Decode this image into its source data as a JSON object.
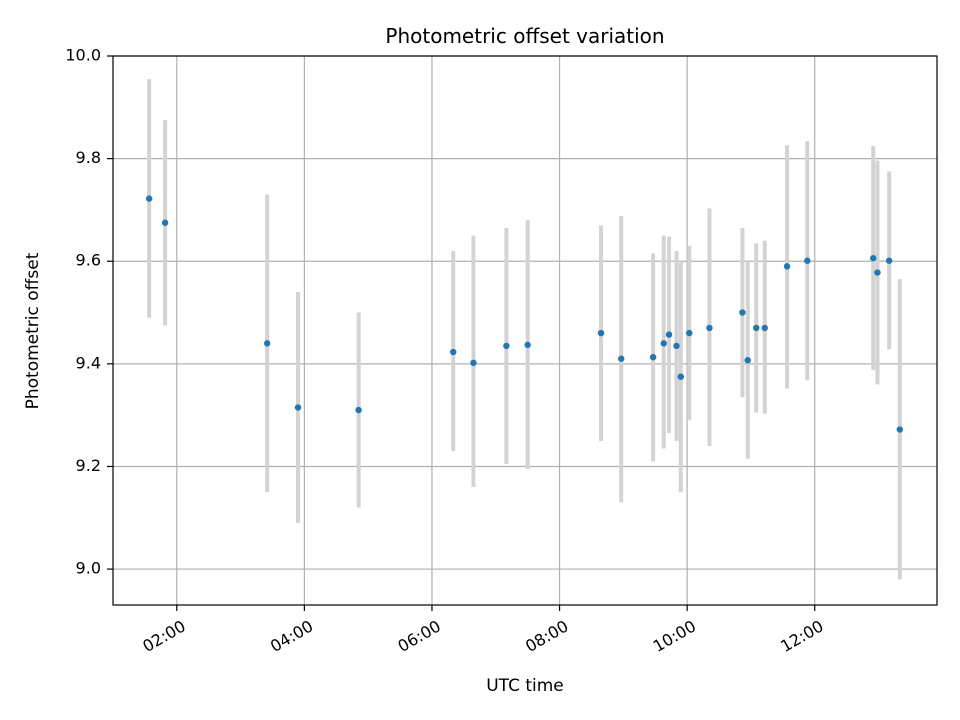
{
  "chart_data": {
    "type": "scatter",
    "title": "Photometric offset variation",
    "xlabel": "UTC time",
    "ylabel": "Photometric offset",
    "xlim": [
      "01:00",
      "13:55"
    ],
    "ylim": [
      8.93,
      10.0
    ],
    "x_ticks": [
      "02:00",
      "04:00",
      "06:00",
      "08:00",
      "10:00",
      "12:00"
    ],
    "y_ticks": [
      "9.0",
      "9.2",
      "9.4",
      "9.6",
      "9.8",
      "10.0"
    ],
    "grid": true,
    "colors": {
      "point": "#1f77b4",
      "errorbar": "#d3d3d3",
      "grid": "#b0b0b0"
    },
    "points": [
      {
        "x": "01:34",
        "y": 9.722,
        "yerr": [
          9.49,
          9.955
        ]
      },
      {
        "x": "01:49",
        "y": 9.675,
        "yerr": [
          9.475,
          9.875
        ]
      },
      {
        "x": "03:25",
        "y": 9.44,
        "yerr": [
          9.15,
          9.73
        ]
      },
      {
        "x": "03:54",
        "y": 9.315,
        "yerr": [
          9.09,
          9.54
        ]
      },
      {
        "x": "04:51",
        "y": 9.31,
        "yerr": [
          9.12,
          9.5
        ]
      },
      {
        "x": "06:20",
        "y": 9.423,
        "yerr": [
          9.23,
          9.62
        ]
      },
      {
        "x": "06:39",
        "y": 9.402,
        "yerr": [
          9.16,
          9.65
        ]
      },
      {
        "x": "07:10",
        "y": 9.435,
        "yerr": [
          9.205,
          9.665
        ]
      },
      {
        "x": "07:30",
        "y": 9.437,
        "yerr": [
          9.195,
          9.68
        ]
      },
      {
        "x": "08:39",
        "y": 9.46,
        "yerr": [
          9.25,
          9.67
        ]
      },
      {
        "x": "08:58",
        "y": 9.41,
        "yerr": [
          9.13,
          9.688
        ]
      },
      {
        "x": "09:28",
        "y": 9.413,
        "yerr": [
          9.21,
          9.615
        ]
      },
      {
        "x": "09:38",
        "y": 9.44,
        "yerr": [
          9.235,
          9.65
        ]
      },
      {
        "x": "09:43",
        "y": 9.457,
        "yerr": [
          9.265,
          9.648
        ]
      },
      {
        "x": "09:50",
        "y": 9.435,
        "yerr": [
          9.25,
          9.62
        ]
      },
      {
        "x": "09:54",
        "y": 9.375,
        "yerr": [
          9.15,
          9.6
        ]
      },
      {
        "x": "10:02",
        "y": 9.46,
        "yerr": [
          9.29,
          9.63
        ]
      },
      {
        "x": "10:21",
        "y": 9.47,
        "yerr": [
          9.24,
          9.703
        ]
      },
      {
        "x": "10:52",
        "y": 9.5,
        "yerr": [
          9.335,
          9.665
        ]
      },
      {
        "x": "10:57",
        "y": 9.407,
        "yerr": [
          9.215,
          9.6
        ]
      },
      {
        "x": "11:05",
        "y": 9.47,
        "yerr": [
          9.305,
          9.635
        ]
      },
      {
        "x": "11:13",
        "y": 9.47,
        "yerr": [
          9.303,
          9.64
        ]
      },
      {
        "x": "11:34",
        "y": 9.59,
        "yerr": [
          9.352,
          9.826
        ]
      },
      {
        "x": "11:53",
        "y": 9.601,
        "yerr": [
          9.368,
          9.834
        ]
      },
      {
        "x": "12:55",
        "y": 9.606,
        "yerr": [
          9.388,
          9.824
        ]
      },
      {
        "x": "12:59",
        "y": 9.578,
        "yerr": [
          9.36,
          9.796
        ]
      },
      {
        "x": "13:10",
        "y": 9.601,
        "yerr": [
          9.428,
          9.775
        ]
      },
      {
        "x": "13:20",
        "y": 9.272,
        "yerr": [
          8.98,
          9.565
        ]
      }
    ]
  }
}
